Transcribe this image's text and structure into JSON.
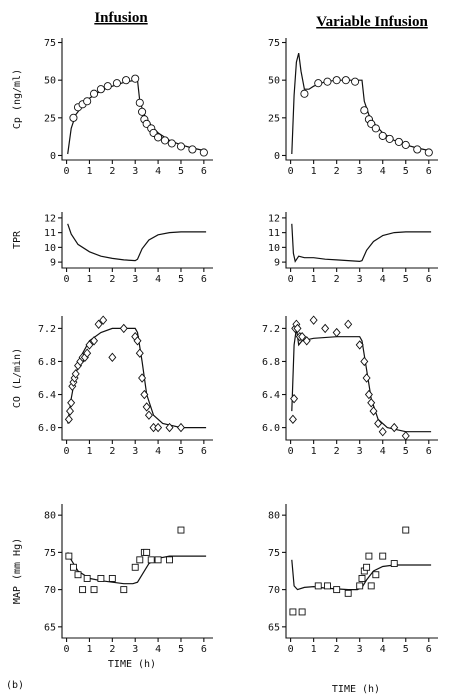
{
  "figure_label": "(b)",
  "columns": [
    {
      "title": "Infusion"
    },
    {
      "title": "Variable Infusion"
    }
  ],
  "x_axis": {
    "label": "TIME (h)",
    "ticks": [
      0,
      1,
      2,
      3,
      4,
      5,
      6
    ],
    "range": [
      -0.2,
      6.4
    ]
  },
  "chart_data": [
    {
      "type": "scatter",
      "row": 0,
      "col": 0,
      "ylabel": "Cp (ng/ml)",
      "marker": "circle",
      "yticks": [
        0,
        25,
        50,
        75
      ],
      "ylim": [
        -3,
        78
      ],
      "points": [
        [
          0.3,
          25
        ],
        [
          0.5,
          32
        ],
        [
          0.7,
          34
        ],
        [
          0.9,
          36
        ],
        [
          1.2,
          41
        ],
        [
          1.5,
          44
        ],
        [
          1.8,
          46
        ],
        [
          2.2,
          48
        ],
        [
          2.6,
          50
        ],
        [
          3.0,
          51
        ],
        [
          3.2,
          35
        ],
        [
          3.3,
          29
        ],
        [
          3.4,
          24
        ],
        [
          3.5,
          21
        ],
        [
          3.7,
          18
        ],
        [
          3.8,
          15
        ],
        [
          4.0,
          12
        ],
        [
          4.3,
          10
        ],
        [
          4.6,
          8
        ],
        [
          5.0,
          6
        ],
        [
          5.5,
          4
        ],
        [
          6.0,
          2
        ]
      ],
      "curve": [
        [
          0.05,
          1
        ],
        [
          0.2,
          18
        ],
        [
          0.4,
          27
        ],
        [
          0.7,
          33
        ],
        [
          1.0,
          38
        ],
        [
          1.5,
          43
        ],
        [
          2.0,
          46
        ],
        [
          2.5,
          48.5
        ],
        [
          3.0,
          50
        ],
        [
          3.1,
          50
        ],
        [
          3.2,
          36
        ],
        [
          3.4,
          27
        ],
        [
          3.7,
          20
        ],
        [
          4.0,
          15
        ],
        [
          4.5,
          10
        ],
        [
          5.0,
          7
        ],
        [
          5.5,
          5
        ],
        [
          6.1,
          3
        ]
      ]
    },
    {
      "type": "line",
      "row": 1,
      "col": 0,
      "ylabel": "TPR",
      "yticks": [
        9,
        10,
        11,
        12
      ],
      "ylim": [
        8.6,
        12.4
      ],
      "curve": [
        [
          0.05,
          11.6
        ],
        [
          0.2,
          10.9
        ],
        [
          0.5,
          10.2
        ],
        [
          1.0,
          9.7
        ],
        [
          1.5,
          9.4
        ],
        [
          2.0,
          9.25
        ],
        [
          2.5,
          9.15
        ],
        [
          3.0,
          9.1
        ],
        [
          3.1,
          9.2
        ],
        [
          3.3,
          9.9
        ],
        [
          3.6,
          10.5
        ],
        [
          4.0,
          10.85
        ],
        [
          4.5,
          11.0
        ],
        [
          5.0,
          11.05
        ],
        [
          6.1,
          11.05
        ]
      ]
    },
    {
      "type": "scatter",
      "row": 2,
      "col": 0,
      "ylabel": "CO (L/min)",
      "marker": "diamond",
      "yticks": [
        6.0,
        6.4,
        6.8,
        7.2
      ],
      "ylim": [
        5.85,
        7.35
      ],
      "points": [
        [
          0.1,
          6.1
        ],
        [
          0.15,
          6.2
        ],
        [
          0.2,
          6.3
        ],
        [
          0.25,
          6.5
        ],
        [
          0.3,
          6.55
        ],
        [
          0.35,
          6.6
        ],
        [
          0.4,
          6.65
        ],
        [
          0.5,
          6.75
        ],
        [
          0.6,
          6.8
        ],
        [
          0.7,
          6.85
        ],
        [
          0.8,
          6.85
        ],
        [
          0.9,
          6.9
        ],
        [
          1.0,
          7.0
        ],
        [
          1.2,
          7.05
        ],
        [
          1.4,
          7.25
        ],
        [
          1.6,
          7.3
        ],
        [
          2.0,
          6.85
        ],
        [
          2.5,
          7.2
        ],
        [
          3.0,
          7.1
        ],
        [
          3.1,
          7.05
        ],
        [
          3.2,
          6.9
        ],
        [
          3.3,
          6.6
        ],
        [
          3.4,
          6.4
        ],
        [
          3.5,
          6.25
        ],
        [
          3.6,
          6.15
        ],
        [
          3.8,
          6.0
        ],
        [
          4.0,
          6.0
        ],
        [
          4.5,
          6.0
        ],
        [
          5.0,
          6.0
        ]
      ],
      "curve": [
        [
          0.05,
          6.05
        ],
        [
          0.2,
          6.35
        ],
        [
          0.4,
          6.65
        ],
        [
          0.7,
          6.9
        ],
        [
          1.0,
          7.05
        ],
        [
          1.5,
          7.15
        ],
        [
          2.0,
          7.2
        ],
        [
          2.5,
          7.2
        ],
        [
          3.0,
          7.2
        ],
        [
          3.1,
          7.15
        ],
        [
          3.3,
          6.8
        ],
        [
          3.5,
          6.4
        ],
        [
          3.8,
          6.15
        ],
        [
          4.2,
          6.05
        ],
        [
          5.0,
          6.0
        ],
        [
          6.1,
          6.0
        ]
      ]
    },
    {
      "type": "scatter",
      "row": 3,
      "col": 0,
      "ylabel": "MAP (mm Hg)",
      "marker": "square",
      "yticks": [
        65,
        70,
        75,
        80
      ],
      "ylim": [
        63.5,
        81.5
      ],
      "points": [
        [
          0.1,
          74.5
        ],
        [
          0.3,
          73
        ],
        [
          0.5,
          72
        ],
        [
          0.7,
          70
        ],
        [
          0.9,
          71.5
        ],
        [
          1.2,
          70
        ],
        [
          1.5,
          71.5
        ],
        [
          2.0,
          71.5
        ],
        [
          2.5,
          70
        ],
        [
          3.0,
          73
        ],
        [
          3.2,
          74
        ],
        [
          3.4,
          75
        ],
        [
          3.5,
          75
        ],
        [
          3.7,
          74
        ],
        [
          4.0,
          74
        ],
        [
          4.5,
          74
        ],
        [
          5.0,
          78
        ]
      ],
      "curve": [
        [
          0.05,
          75
        ],
        [
          0.2,
          74
        ],
        [
          0.5,
          72.5
        ],
        [
          1.0,
          71.5
        ],
        [
          1.5,
          71.2
        ],
        [
          2.0,
          71.0
        ],
        [
          2.5,
          70.8
        ],
        [
          2.9,
          70.8
        ],
        [
          3.1,
          71.0
        ],
        [
          3.3,
          72.0
        ],
        [
          3.6,
          73.5
        ],
        [
          4.0,
          74.2
        ],
        [
          4.5,
          74.5
        ],
        [
          5.0,
          74.5
        ],
        [
          6.1,
          74.5
        ]
      ]
    },
    {
      "type": "scatter",
      "row": 0,
      "col": 1,
      "ylabel": "",
      "marker": "circle",
      "yticks": [
        0,
        25,
        50,
        75
      ],
      "ylim": [
        -3,
        78
      ],
      "points": [
        [
          0.6,
          41
        ],
        [
          1.2,
          48
        ],
        [
          1.6,
          49
        ],
        [
          2.0,
          50
        ],
        [
          2.4,
          50
        ],
        [
          2.8,
          49
        ],
        [
          3.2,
          30
        ],
        [
          3.4,
          24
        ],
        [
          3.5,
          21
        ],
        [
          3.7,
          18
        ],
        [
          4.0,
          13
        ],
        [
          4.3,
          11
        ],
        [
          4.7,
          9
        ],
        [
          5.0,
          7
        ],
        [
          5.5,
          4
        ],
        [
          6.0,
          2
        ]
      ],
      "curve": [
        [
          0.05,
          1
        ],
        [
          0.15,
          40
        ],
        [
          0.25,
          62
        ],
        [
          0.35,
          68
        ],
        [
          0.45,
          56
        ],
        [
          0.6,
          44
        ],
        [
          0.8,
          44
        ],
        [
          1.0,
          46
        ],
        [
          1.5,
          49
        ],
        [
          2.0,
          50
        ],
        [
          2.5,
          50
        ],
        [
          3.0,
          50
        ],
        [
          3.1,
          50
        ],
        [
          3.2,
          36
        ],
        [
          3.4,
          27
        ],
        [
          3.7,
          20
        ],
        [
          4.0,
          15
        ],
        [
          4.5,
          10
        ],
        [
          5.0,
          7
        ],
        [
          5.5,
          5
        ],
        [
          6.1,
          3
        ]
      ]
    },
    {
      "type": "line",
      "row": 1,
      "col": 1,
      "ylabel": "",
      "yticks": [
        9,
        10,
        11,
        12
      ],
      "ylim": [
        8.6,
        12.4
      ],
      "curve": [
        [
          0.05,
          11.6
        ],
        [
          0.12,
          9.6
        ],
        [
          0.2,
          9.05
        ],
        [
          0.35,
          9.4
        ],
        [
          0.6,
          9.3
        ],
        [
          1.0,
          9.3
        ],
        [
          1.5,
          9.2
        ],
        [
          2.0,
          9.15
        ],
        [
          2.5,
          9.1
        ],
        [
          3.0,
          9.05
        ],
        [
          3.1,
          9.1
        ],
        [
          3.3,
          9.8
        ],
        [
          3.6,
          10.4
        ],
        [
          4.0,
          10.8
        ],
        [
          4.5,
          11.0
        ],
        [
          5.0,
          11.05
        ],
        [
          6.1,
          11.05
        ]
      ]
    },
    {
      "type": "scatter",
      "row": 2,
      "col": 1,
      "ylabel": "",
      "marker": "diamond",
      "yticks": [
        6.0,
        6.4,
        6.8,
        7.2
      ],
      "ylim": [
        5.85,
        7.35
      ],
      "points": [
        [
          0.1,
          6.1
        ],
        [
          0.15,
          6.35
        ],
        [
          0.2,
          7.2
        ],
        [
          0.25,
          7.25
        ],
        [
          0.3,
          7.2
        ],
        [
          0.4,
          7.1
        ],
        [
          0.5,
          7.1
        ],
        [
          0.7,
          7.05
        ],
        [
          1.0,
          7.3
        ],
        [
          1.5,
          7.2
        ],
        [
          2.0,
          7.15
        ],
        [
          2.5,
          7.25
        ],
        [
          3.0,
          7.0
        ],
        [
          3.2,
          6.8
        ],
        [
          3.3,
          6.6
        ],
        [
          3.4,
          6.4
        ],
        [
          3.5,
          6.3
        ],
        [
          3.6,
          6.2
        ],
        [
          3.8,
          6.05
        ],
        [
          4.0,
          5.95
        ],
        [
          4.5,
          6.0
        ],
        [
          5.0,
          5.9
        ]
      ],
      "curve": [
        [
          0.05,
          6.2
        ],
        [
          0.15,
          7.0
        ],
        [
          0.25,
          7.2
        ],
        [
          0.35,
          7.0
        ],
        [
          0.5,
          7.05
        ],
        [
          1.0,
          7.08
        ],
        [
          2.0,
          7.1
        ],
        [
          3.0,
          7.1
        ],
        [
          3.1,
          7.05
        ],
        [
          3.3,
          6.7
        ],
        [
          3.5,
          6.35
        ],
        [
          3.8,
          6.1
        ],
        [
          4.2,
          6.0
        ],
        [
          5.0,
          5.95
        ],
        [
          6.1,
          5.95
        ]
      ]
    },
    {
      "type": "scatter",
      "row": 3,
      "col": 1,
      "ylabel": "",
      "marker": "square",
      "yticks": [
        65,
        70,
        75,
        80
      ],
      "ylim": [
        63.5,
        81.5
      ],
      "points": [
        [
          0.1,
          67
        ],
        [
          0.5,
          67
        ],
        [
          1.2,
          70.5
        ],
        [
          1.6,
          70.5
        ],
        [
          2.0,
          70
        ],
        [
          2.5,
          69.5
        ],
        [
          3.0,
          70.5
        ],
        [
          3.1,
          71.5
        ],
        [
          3.2,
          72.5
        ],
        [
          3.3,
          73
        ],
        [
          3.4,
          74.5
        ],
        [
          3.5,
          70.5
        ],
        [
          3.7,
          72
        ],
        [
          4.0,
          74.5
        ],
        [
          4.5,
          73.5
        ],
        [
          5.0,
          78
        ]
      ],
      "curve": [
        [
          0.05,
          74
        ],
        [
          0.15,
          70.5
        ],
        [
          0.3,
          70
        ],
        [
          0.6,
          70.3
        ],
        [
          1.0,
          70.4
        ],
        [
          1.5,
          70.2
        ],
        [
          2.0,
          70.1
        ],
        [
          2.5,
          70.0
        ],
        [
          2.9,
          70.0
        ],
        [
          3.1,
          70.3
        ],
        [
          3.3,
          71.3
        ],
        [
          3.6,
          72.5
        ],
        [
          4.0,
          73.1
        ],
        [
          4.5,
          73.3
        ],
        [
          6.1,
          73.3
        ]
      ]
    }
  ]
}
